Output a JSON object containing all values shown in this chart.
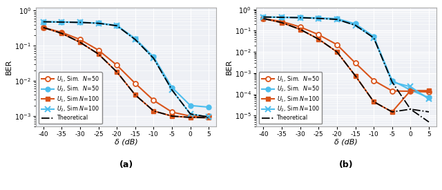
{
  "delta_dB": [
    -40,
    -35,
    -30,
    -25,
    -20,
    -15,
    -10,
    -5,
    0,
    5
  ],
  "plot_a": {
    "title": "(a)",
    "ylim_lo": 0.0005,
    "ylim_hi": 1.2,
    "yticks": [
      0.001,
      0.01,
      0.1,
      1.0
    ],
    "ylabel": "BER",
    "xlabel": "δ (dB)",
    "U1_N50": [
      0.33,
      0.24,
      0.15,
      0.075,
      0.028,
      0.0085,
      0.0028,
      0.0013,
      0.001,
      0.00098
    ],
    "U2_N50": [
      0.48,
      0.475,
      0.465,
      0.44,
      0.38,
      0.16,
      0.048,
      0.0065,
      0.002,
      0.0018
    ],
    "U1_N100": [
      0.33,
      0.225,
      0.125,
      0.058,
      0.018,
      0.004,
      0.0014,
      0.001,
      0.00092,
      0.0009
    ],
    "U2_N100": [
      0.48,
      0.47,
      0.46,
      0.435,
      0.37,
      0.15,
      0.044,
      0.0055,
      0.00115,
      0.00094
    ],
    "Th_U1": [
      0.33,
      0.225,
      0.125,
      0.058,
      0.018,
      0.004,
      0.0014,
      0.001,
      0.00092,
      0.0009
    ],
    "Th_U2": [
      0.48,
      0.47,
      0.46,
      0.435,
      0.37,
      0.15,
      0.044,
      0.0055,
      0.00115,
      0.00094
    ]
  },
  "plot_b": {
    "title": "(b)",
    "ylim_lo": 3e-06,
    "ylim_hi": 1.2,
    "yticks": [
      1e-05,
      0.0001,
      0.001,
      0.01,
      0.1,
      1.0
    ],
    "ylabel": "BER",
    "xlabel": "δ (dB)",
    "U1_N50": [
      0.37,
      0.27,
      0.15,
      0.065,
      0.022,
      0.003,
      0.00045,
      0.000145,
      0.00014,
      0.00013
    ],
    "U2_N50": [
      0.44,
      0.43,
      0.42,
      0.4,
      0.37,
      0.21,
      0.053,
      0.00045,
      0.00016,
      7e-05
    ],
    "U1_N100": [
      0.37,
      0.24,
      0.115,
      0.04,
      0.01,
      0.00075,
      4.5e-05,
      1.5e-05,
      0.00015,
      0.00015
    ],
    "U2_N100": [
      0.44,
      0.425,
      0.41,
      0.38,
      0.34,
      0.18,
      0.046,
      0.00038,
      0.00023,
      6e-05
    ],
    "Th_U1": [
      0.37,
      0.24,
      0.115,
      0.04,
      0.01,
      0.00075,
      4.5e-05,
      1.5e-05,
      2e-05,
      1.5e-05
    ],
    "Th_U2": [
      0.44,
      0.425,
      0.41,
      0.38,
      0.34,
      0.18,
      0.046,
      0.00038,
      2e-05,
      5e-06
    ]
  },
  "colors": {
    "orange": "#D95319",
    "blue": "#4DBEEE"
  },
  "bg_color": "#EEF0F5",
  "grid_color": "#FFFFFF",
  "spine_color": "#AAAAAA"
}
